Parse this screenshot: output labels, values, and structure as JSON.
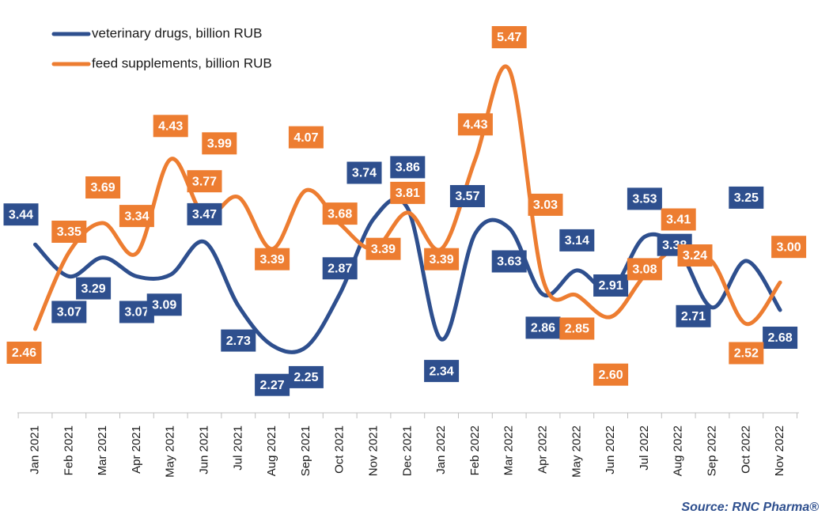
{
  "chart_data": {
    "type": "line",
    "categories": [
      "Jan 2021",
      "Feb 2021",
      "Mar 2021",
      "Apr 2021",
      "May 2021",
      "Jun 2021",
      "Jul 2021",
      "Aug 2021",
      "Sep 2021",
      "Oct 2021",
      "Nov 2021",
      "Dec 2021",
      "Jan 2022",
      "Feb 2022",
      "Mar 2022",
      "Apr 2022",
      "May 2022",
      "Jun 2022",
      "Jul 2022",
      "Aug 2022",
      "Sep 2022",
      "Oct 2022",
      "Nov 2022"
    ],
    "series": [
      {
        "name": "veterinary drugs, billion RUB",
        "color": "#2e4f8e",
        "values": [
          3.44,
          3.07,
          3.29,
          3.07,
          3.09,
          3.47,
          2.73,
          2.27,
          2.25,
          2.87,
          3.74,
          3.86,
          2.34,
          3.57,
          3.63,
          2.86,
          3.14,
          2.91,
          3.53,
          3.38,
          2.71,
          3.25,
          2.68
        ],
        "labels": [
          "3.44",
          "3.07",
          "3.29",
          "3.07",
          "3.09",
          "3.47",
          "2.73",
          "2.27",
          "2.25",
          "2.87",
          "3.74",
          "3.86",
          "2.34",
          "3.57",
          "3.63",
          "2.86",
          "3.14",
          "2.91",
          "3.53",
          "3.38",
          "2.71",
          "3.25",
          "2.68"
        ]
      },
      {
        "name": "feed supplements, billion RUB",
        "color": "#ed7d31",
        "values": [
          2.46,
          3.35,
          3.69,
          3.34,
          4.43,
          3.77,
          3.99,
          3.39,
          4.07,
          3.68,
          3.39,
          3.81,
          3.39,
          4.43,
          5.47,
          3.03,
          2.85,
          2.6,
          3.08,
          3.41,
          3.24,
          2.52,
          3.0
        ],
        "labels": [
          "2.46",
          "3.35",
          "3.69",
          "3.34",
          "4.43",
          "3.77",
          "3.99",
          "3.39",
          "4.07",
          "3.68",
          "3.39",
          "3.81",
          "3.39",
          "4.43",
          "5.47",
          "3.03",
          "2.85",
          "2.60",
          "3.08",
          "3.41",
          "3.24",
          "2.52",
          "3.00"
        ]
      }
    ],
    "title": "",
    "xlabel": "",
    "ylabel": "",
    "grid": false,
    "legend_position": "top-left",
    "source": "Source: RNC Pharma®"
  }
}
